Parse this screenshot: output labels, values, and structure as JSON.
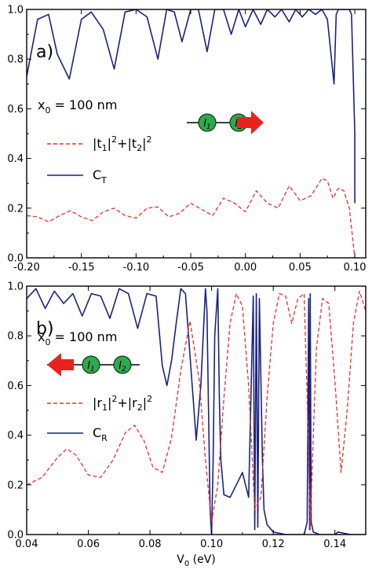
{
  "chart_data": [
    {
      "type": "line",
      "panel_label": "a)",
      "annotation": {
        "base": "x",
        "sub": "0",
        "rest": "= 100 nm"
      },
      "xlim": [
        -0.2,
        0.11
      ],
      "ylim": [
        0,
        1.0
      ],
      "xticks": [
        "-0.20",
        "-0.15",
        "-0.10",
        "-0.05",
        "0.00",
        "0.05",
        "0.10"
      ],
      "xtick_values": [
        -0.2,
        -0.15,
        -0.1,
        -0.05,
        0.0,
        0.05,
        0.1
      ],
      "yticks": [
        "0.0",
        "0.2",
        "0.4",
        "0.6",
        "0.8",
        "1.0"
      ],
      "ytick_values": [
        0,
        0.2,
        0.4,
        0.6,
        0.8,
        1.0
      ],
      "xlabel": "",
      "ylabel": "",
      "legend": [
        {
          "label_parts": [
            "|t",
            "1",
            "|",
            "2",
            "+|t",
            "2",
            "|",
            "2"
          ],
          "style": "dashed",
          "color": "#e8302a"
        },
        {
          "label_parts": [
            "C",
            "T"
          ],
          "style": "solid",
          "color": "#1a237e"
        }
      ],
      "schematic": {
        "direction": "right",
        "dot1": "I1",
        "dot2": "I2"
      },
      "series": [
        {
          "name": "C_T",
          "color": "#1a237e",
          "style": "solid",
          "x": [
            -0.2,
            -0.19,
            -0.18,
            -0.172,
            -0.161,
            -0.15,
            -0.141,
            -0.13,
            -0.12,
            -0.11,
            -0.1,
            -0.09,
            -0.08,
            -0.072,
            -0.065,
            -0.058,
            -0.05,
            -0.043,
            -0.035,
            -0.028,
            -0.02,
            -0.013,
            -0.006,
            0.0,
            0.007,
            0.014,
            0.02,
            0.027,
            0.033,
            0.04,
            0.046,
            0.052,
            0.058,
            0.064,
            0.07,
            0.075,
            0.078,
            0.081,
            0.083,
            0.085,
            0.09,
            0.095,
            0.097,
            0.1,
            0.1
          ],
          "y": [
            0.73,
            0.96,
            0.98,
            0.82,
            0.72,
            0.96,
            0.99,
            0.92,
            0.76,
            0.99,
            1.0,
            0.97,
            0.8,
            1.0,
            0.99,
            0.87,
            1.0,
            1.0,
            0.83,
            1.0,
            1.0,
            0.9,
            1.0,
            0.93,
            1.0,
            0.94,
            1.0,
            0.97,
            1.0,
            0.95,
            1.0,
            0.97,
            1.0,
            0.98,
            1.0,
            0.96,
            0.83,
            0.7,
            0.98,
            1.0,
            1.0,
            1.0,
            0.98,
            0.5,
            0.22
          ]
        },
        {
          "name": "|t1|^2+|t2|^2",
          "color": "#e8302a",
          "style": "dashed",
          "x": [
            -0.2,
            -0.19,
            -0.18,
            -0.17,
            -0.16,
            -0.15,
            -0.14,
            -0.13,
            -0.12,
            -0.11,
            -0.1,
            -0.09,
            -0.08,
            -0.07,
            -0.06,
            -0.05,
            -0.04,
            -0.03,
            -0.02,
            -0.01,
            0.0,
            0.01,
            0.02,
            0.03,
            0.04,
            0.05,
            0.06,
            0.07,
            0.075,
            0.08,
            0.085,
            0.09,
            0.095,
            0.1
          ],
          "y": [
            0.17,
            0.165,
            0.145,
            0.17,
            0.19,
            0.165,
            0.15,
            0.185,
            0.2,
            0.17,
            0.16,
            0.2,
            0.205,
            0.165,
            0.18,
            0.22,
            0.195,
            0.17,
            0.24,
            0.22,
            0.185,
            0.27,
            0.22,
            0.2,
            0.29,
            0.23,
            0.25,
            0.32,
            0.31,
            0.24,
            0.28,
            0.27,
            0.2,
            0.0
          ]
        }
      ]
    },
    {
      "type": "line",
      "panel_label": "b)",
      "annotation": {
        "base": "x",
        "sub": "0",
        "rest": "= 100 nm"
      },
      "xlim": [
        0.04,
        0.15
      ],
      "ylim": [
        0,
        1.0
      ],
      "xticks": [
        "0.04",
        "0.06",
        "0.08",
        "0.10",
        "0.12",
        "0.14"
      ],
      "xtick_values": [
        0.04,
        0.06,
        0.08,
        0.1,
        0.12,
        0.14
      ],
      "yticks": [
        "0.0",
        "0.2",
        "0.4",
        "0.6",
        "0.8",
        "1.0"
      ],
      "ytick_values": [
        0,
        0.2,
        0.4,
        0.6,
        0.8,
        1.0
      ],
      "xlabel_parts": [
        "V",
        "0",
        " (eV)"
      ],
      "ylabel": "",
      "legend": [
        {
          "label_parts": [
            "|r",
            "1",
            "|",
            "2",
            "+|r",
            "2",
            "|",
            "2"
          ],
          "style": "dashed",
          "color": "#e8302a"
        },
        {
          "label_parts": [
            "C",
            "R"
          ],
          "style": "solid",
          "color": "#1a237e"
        }
      ],
      "schematic": {
        "direction": "left",
        "dot1": "I1",
        "dot2": "I2"
      },
      "series": [
        {
          "name": "C_R",
          "color": "#1a237e",
          "style": "solid",
          "x": [
            0.04,
            0.043,
            0.046,
            0.049,
            0.052,
            0.055,
            0.058,
            0.061,
            0.064,
            0.067,
            0.07,
            0.073,
            0.076,
            0.079,
            0.082,
            0.084,
            0.0855,
            0.087,
            0.0885,
            0.09,
            0.0915,
            0.093,
            0.095,
            0.0965,
            0.098,
            0.0985,
            0.099,
            0.0995,
            0.1,
            0.1005,
            0.101,
            0.102,
            0.1025,
            0.103,
            0.104,
            0.106,
            0.108,
            0.11,
            0.112,
            0.1135,
            0.114,
            0.1145,
            0.115,
            0.1155,
            0.1165,
            0.117,
            0.118,
            0.12,
            0.124,
            0.128,
            0.13,
            0.131,
            0.1315,
            0.1318,
            0.132,
            0.1323,
            0.133,
            0.135,
            0.138,
            0.14,
            0.141,
            0.145,
            0.15
          ],
          "y": [
            0.95,
            0.99,
            0.91,
            0.98,
            0.93,
            0.97,
            0.88,
            0.97,
            0.96,
            0.87,
            0.99,
            0.97,
            0.83,
            0.97,
            0.96,
            0.68,
            0.6,
            0.7,
            0.85,
            0.99,
            0.97,
            0.72,
            0.38,
            0.6,
            0.99,
            0.9,
            0.5,
            0.1,
            0.0,
            0.3,
            0.8,
            0.99,
            0.55,
            0.3,
            0.16,
            0.15,
            0.2,
            0.25,
            0.15,
            0.96,
            0.02,
            0.97,
            0.03,
            0.95,
            0.3,
            0.1,
            0.04,
            0.01,
            0.0,
            0.0,
            0.0,
            0.05,
            0.95,
            0.02,
            0.97,
            0.05,
            0.01,
            0.0,
            0.0,
            0.0,
            0.01,
            0.0,
            0.0
          ]
        },
        {
          "name": "|r1|^2+|r2|^2",
          "color": "#e8302a",
          "style": "dashed",
          "x": [
            0.04,
            0.045,
            0.05,
            0.053,
            0.056,
            0.06,
            0.064,
            0.068,
            0.072,
            0.075,
            0.078,
            0.081,
            0.084,
            0.087,
            0.09,
            0.093,
            0.096,
            0.098,
            0.1,
            0.102,
            0.104,
            0.106,
            0.108,
            0.11,
            0.112,
            0.114,
            0.116,
            0.118,
            0.12,
            0.122,
            0.124,
            0.126,
            0.128,
            0.13,
            0.131,
            0.132,
            0.133,
            0.134,
            0.136,
            0.138,
            0.14,
            0.142,
            0.144,
            0.146,
            0.148,
            0.15
          ],
          "y": [
            0.2,
            0.23,
            0.31,
            0.345,
            0.32,
            0.24,
            0.23,
            0.3,
            0.41,
            0.44,
            0.38,
            0.27,
            0.25,
            0.39,
            0.66,
            0.86,
            0.62,
            0.3,
            0.05,
            0.2,
            0.55,
            0.85,
            0.97,
            0.92,
            0.6,
            0.1,
            0.15,
            0.55,
            0.85,
            0.97,
            0.96,
            0.85,
            0.95,
            0.97,
            0.55,
            0.02,
            0.4,
            0.75,
            0.95,
            0.93,
            0.62,
            0.25,
            0.5,
            0.85,
            0.98,
            0.9
          ]
        }
      ]
    }
  ]
}
